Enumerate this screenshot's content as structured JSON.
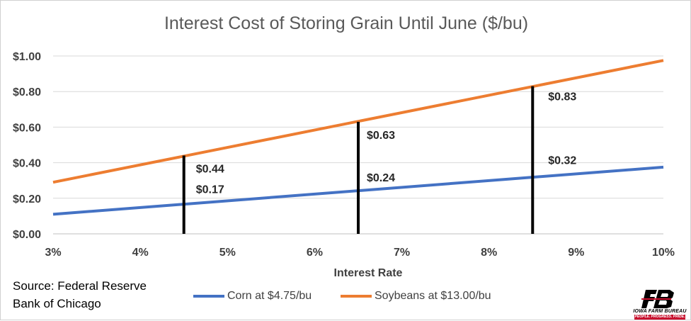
{
  "chart_data": {
    "type": "line",
    "title": "Interest Cost of Storing Grain Until June ($/bu)",
    "xlabel": "Interest Rate",
    "ylabel": "",
    "x": [
      3,
      4,
      5,
      6,
      7,
      8,
      9,
      10
    ],
    "x_tick_labels": [
      "3%",
      "4%",
      "5%",
      "6%",
      "7%",
      "8%",
      "9%",
      "10%"
    ],
    "xlim": [
      3,
      10
    ],
    "ylim": [
      0,
      1
    ],
    "y_ticks": [
      0,
      0.2,
      0.4,
      0.6,
      0.8,
      1.0
    ],
    "y_tick_labels": [
      "$0.00",
      "$0.20",
      "$0.40",
      "$0.60",
      "$0.80",
      "$1.00"
    ],
    "grid": true,
    "legend_position": "bottom",
    "series": [
      {
        "name": "Corn at $4.75/bu",
        "color": "#4472c4",
        "x": [
          3,
          10
        ],
        "values": [
          0.11,
          0.375
        ]
      },
      {
        "name": "Soybeans at $13.00/bu",
        "color": "#ed7d31",
        "x": [
          3,
          10
        ],
        "values": [
          0.29,
          0.975
        ]
      }
    ],
    "markers": [
      {
        "x": 4.5,
        "labels": [
          {
            "series": 1,
            "text": "$0.44",
            "value": 0.44
          },
          {
            "series": 0,
            "text": "$0.17",
            "value": 0.17
          }
        ]
      },
      {
        "x": 6.5,
        "labels": [
          {
            "series": 1,
            "text": "$0.63",
            "value": 0.63
          },
          {
            "series": 0,
            "text": "$0.24",
            "value": 0.24
          }
        ]
      },
      {
        "x": 8.5,
        "labels": [
          {
            "series": 1,
            "text": "$0.83",
            "value": 0.83
          },
          {
            "series": 0,
            "text": "$0.32",
            "value": 0.32
          }
        ]
      }
    ]
  },
  "source_note": {
    "line1": "Source: Federal Reserve",
    "line2": "Bank of Chicago"
  },
  "logo": {
    "line1": "IOWA FARM BUREAU",
    "line2": "PEOPLE. PROGRESS. PRIDE.",
    "icon": "farm-bureau-logo",
    "color": "#c8102e"
  }
}
